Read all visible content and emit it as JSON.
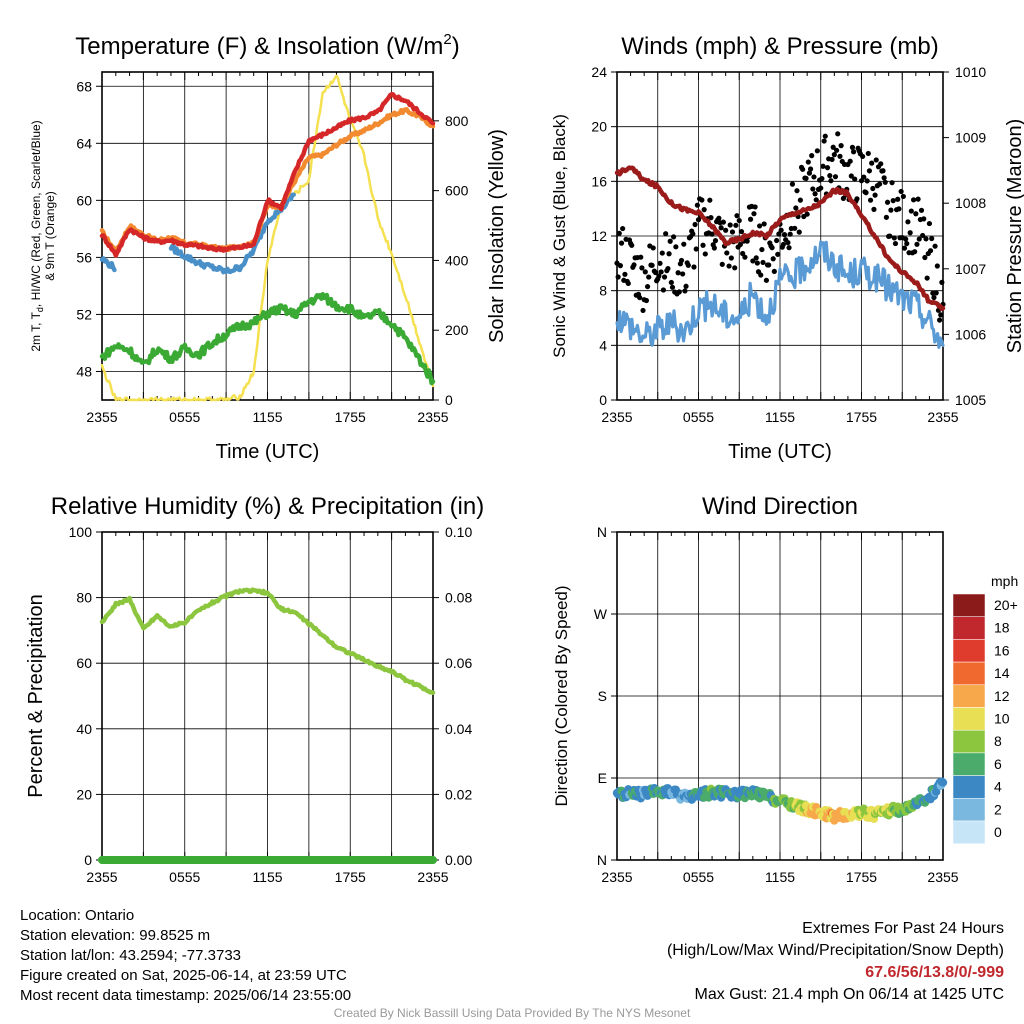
{
  "chart_data": [
    {
      "id": "temp",
      "type": "line",
      "title": "Temperature (F) & Insolation (W/m",
      "title_sup": "2",
      "title_close": ")",
      "xlabel": "Time (UTC)",
      "ylabel_line1": "2m T, T",
      "ylabel_sub": "d",
      "ylabel_line1_rest": ", HI/WC (Red, Green, Scarlet/Blue)",
      "ylabel_line2": "& 9m T (Orange)",
      "ylabel_right": "Solar Insolation (Yellow)",
      "x_ticks": [
        "2355",
        "0555",
        "1155",
        "1755",
        "2355"
      ],
      "ylim": [
        46,
        69
      ],
      "y_ticks": [
        "48",
        "52",
        "56",
        "60",
        "64",
        "68"
      ],
      "y_tick_values": [
        48,
        52,
        56,
        60,
        64,
        68
      ],
      "ylim_right": [
        0,
        940
      ],
      "y_ticks_right": [
        "0",
        "200",
        "400",
        "600",
        "800"
      ],
      "y_tick_values_right": [
        0,
        200,
        400,
        600,
        800
      ],
      "x_hours": [
        0,
        1,
        2,
        3,
        4,
        5,
        6,
        7,
        8,
        9,
        10,
        11,
        12,
        13,
        14,
        15,
        16,
        17,
        18,
        19,
        20,
        21,
        22,
        23,
        24
      ],
      "series": [
        {
          "color": "#f28b30",
          "values": [
            57.8,
            56.4,
            58.2,
            57.6,
            57.2,
            57.4,
            57.0,
            56.9,
            56.7,
            56.6,
            56.8,
            57.0,
            59.6,
            59.6,
            61.4,
            63.0,
            63.2,
            63.9,
            64.5,
            64.9,
            65.4,
            66.0,
            66.3,
            65.9,
            65.2
          ]
        },
        {
          "color": "#d62728",
          "values": [
            57.6,
            56.2,
            58.0,
            57.4,
            57.1,
            57.2,
            56.9,
            56.8,
            56.6,
            56.6,
            56.7,
            56.9,
            60.0,
            59.5,
            62.0,
            64.2,
            64.6,
            65.1,
            65.6,
            65.8,
            66.2,
            67.4,
            67.0,
            66.2,
            65.4
          ]
        },
        {
          "color": "#4a90c8",
          "values": [
            55.9,
            55.2,
            null,
            null,
            null,
            56.7,
            56.1,
            55.6,
            55.3,
            55.0,
            55.3,
            56.5,
            58.6,
            59.4,
            60.5,
            null,
            null,
            null,
            null,
            null,
            null,
            null,
            null,
            null,
            null
          ]
        },
        {
          "color": "#3aaa35",
          "values": [
            49.0,
            49.8,
            49.5,
            48.4,
            49.6,
            48.9,
            49.6,
            49.2,
            50.0,
            50.6,
            51.2,
            51.4,
            52.1,
            52.4,
            52.0,
            52.9,
            53.3,
            52.6,
            52.4,
            51.7,
            52.1,
            51.4,
            50.3,
            48.9,
            47.3
          ]
        },
        {
          "color": "#f5e050",
          "axis": "right",
          "values": [
            95,
            0,
            0,
            0,
            0,
            0,
            0,
            0,
            0,
            0,
            10,
            80,
            400,
            560,
            590,
            630,
            880,
            930,
            800,
            700,
            520,
            420,
            300,
            170,
            40
          ]
        }
      ]
    },
    {
      "id": "wind",
      "type": "line",
      "title": "Winds (mph) & Pressure (mb)",
      "xlabel": "Time (UTC)",
      "ylabel": "Sonic Wind & Gust (Blue, Black)",
      "ylabel_right": "Station Pressure (Maroon)",
      "x_ticks": [
        "2355",
        "0555",
        "1155",
        "1755",
        "2355"
      ],
      "ylim": [
        0,
        24
      ],
      "y_ticks": [
        "0",
        "4",
        "8",
        "12",
        "16",
        "20",
        "24"
      ],
      "y_tick_values": [
        0,
        4,
        8,
        12,
        16,
        20,
        24
      ],
      "ylim_right": [
        1005,
        1010
      ],
      "y_ticks_right": [
        "1005",
        "1006",
        "1007",
        "1008",
        "1009",
        "1010"
      ],
      "y_tick_values_right": [
        1005,
        1006,
        1007,
        1008,
        1009,
        1010
      ],
      "x_hours": [
        0,
        1,
        2,
        3,
        4,
        5,
        6,
        7,
        8,
        9,
        10,
        11,
        12,
        13,
        14,
        15,
        16,
        17,
        18,
        19,
        20,
        21,
        22,
        23,
        24
      ],
      "series": [
        {
          "color": "#5b9bd5",
          "values": [
            6.2,
            5.5,
            4.6,
            5.2,
            5.6,
            5.0,
            6.8,
            7.0,
            6.2,
            6.0,
            7.8,
            6.1,
            8.7,
            9.0,
            10.0,
            11.0,
            10.0,
            9.0,
            9.5,
            9.0,
            8.2,
            7.4,
            7.0,
            5.6,
            4.0
          ]
        },
        {
          "color": "#000000",
          "mode": "scatter",
          "values": [
            11.0,
            10.0,
            8.6,
            10.5,
            9.8,
            9.4,
            12.5,
            13.0,
            11.0,
            11.6,
            12.2,
            10.5,
            12.0,
            13.8,
            15.5,
            16.8,
            17.8,
            16.3,
            16.5,
            16.0,
            14.2,
            13.0,
            12.8,
            10.8,
            7.0
          ]
        },
        {
          "color": "#9b1b1b",
          "axis": "right",
          "values": [
            1008.45,
            1008.55,
            1008.35,
            1008.25,
            1008.0,
            1007.9,
            1007.85,
            1007.65,
            1007.4,
            1007.45,
            1007.55,
            1007.5,
            1007.75,
            1007.85,
            1007.9,
            1008.0,
            1008.2,
            1008.15,
            1007.8,
            1007.5,
            1007.15,
            1006.95,
            1006.8,
            1006.5,
            1006.4
          ]
        }
      ]
    },
    {
      "id": "rh",
      "type": "line",
      "title": "Relative Humidity (%) & Precipitation (in)",
      "ylabel": "Percent & Precipitation",
      "x_ticks": [
        "2355",
        "0555",
        "1155",
        "1755",
        "2355"
      ],
      "ylim": [
        0,
        100
      ],
      "y_ticks": [
        "0",
        "20",
        "40",
        "60",
        "80",
        "100"
      ],
      "y_tick_values": [
        0,
        20,
        40,
        60,
        80,
        100
      ],
      "ylim_right": [
        0,
        0.1
      ],
      "y_ticks_right": [
        "0.00",
        "0.02",
        "0.04",
        "0.06",
        "0.08",
        "0.10"
      ],
      "y_tick_values_right": [
        0,
        0.02,
        0.04,
        0.06,
        0.08,
        0.1
      ],
      "x_hours": [
        0,
        1,
        2,
        3,
        4,
        5,
        6,
        7,
        8,
        9,
        10,
        11,
        12,
        13,
        14,
        15,
        16,
        17,
        18,
        19,
        20,
        21,
        22,
        23,
        24
      ],
      "series": [
        {
          "color": "#8cc63f",
          "values": [
            72.5,
            78.0,
            79.5,
            70.5,
            74.5,
            71.0,
            72.5,
            76.0,
            78.5,
            80.5,
            82.0,
            82.0,
            81.5,
            76.5,
            75.5,
            72.0,
            68.5,
            65.0,
            63.0,
            61.0,
            59.0,
            57.5,
            55.0,
            53.0,
            51.0
          ]
        },
        {
          "color": "#3aaa35",
          "axis": "right",
          "values": [
            0,
            0,
            0,
            0,
            0,
            0,
            0,
            0,
            0,
            0,
            0,
            0,
            0,
            0,
            0,
            0,
            0,
            0,
            0,
            0,
            0,
            0,
            0,
            0,
            0
          ]
        }
      ]
    },
    {
      "id": "dir",
      "type": "scatter",
      "title": "Wind Direction",
      "ylabel": "Direction (Colored By Speed)",
      "x_ticks": [
        "2355",
        "0555",
        "1155",
        "1755",
        "2355"
      ],
      "ylim": [
        0,
        360
      ],
      "y_ticks": [
        "N",
        "E",
        "S",
        "W",
        "N"
      ],
      "y_tick_values": [
        0,
        90,
        180,
        270,
        360
      ],
      "x_hours": [
        0,
        1,
        2,
        3,
        4,
        5,
        6,
        7,
        8,
        9,
        10,
        11,
        12,
        13,
        14,
        15,
        16,
        17,
        18,
        19,
        20,
        21,
        22,
        23,
        24
      ],
      "series": [
        {
          "values": [
            72,
            73,
            72,
            75,
            74,
            70,
            72,
            74,
            73,
            72,
            73,
            70,
            64,
            60,
            55,
            52,
            48,
            50,
            52,
            50,
            54,
            56,
            60,
            70,
            85
          ],
          "speeds": [
            6,
            5,
            5,
            6,
            5,
            4,
            6,
            7,
            6,
            6,
            7,
            6,
            8,
            9,
            11,
            12,
            13,
            11,
            10,
            10,
            9,
            8,
            7,
            5,
            4
          ]
        }
      ],
      "legend": {
        "unit": "mph",
        "labels": [
          "20+",
          "18",
          "16",
          "14",
          "12",
          "10",
          "8",
          "6",
          "4",
          "2",
          "0"
        ],
        "colors": [
          "#8b1a1a",
          "#c0282d",
          "#e03c2e",
          "#f06a2f",
          "#f7a84a",
          "#e8df55",
          "#8cc63f",
          "#4aab6a",
          "#3b88c4",
          "#7ab8e0",
          "#c6e6f7"
        ]
      }
    }
  ],
  "footer": {
    "location": "Location: Ontario",
    "elevation": "Station elevation: 99.8525 m",
    "latlon": "Station lat/lon: 43.2594; -77.3733",
    "created": "Figure created on Sat, 2025-06-14, at 23:59 UTC",
    "recent": "Most recent data timestamp: 2025/06/14 23:55:00",
    "extremes_title": "Extremes For Past 24 Hours",
    "extremes_fields": "(High/Low/Max Wind/Precipitation/Snow Depth)",
    "extremes_values": "67.6/56/13.8/0/-999",
    "max_gust": "Max Gust: 21.4 mph On 06/14 at 1425 UTC",
    "credit": "Created By Nick Bassill Using Data Provided By The NYS Mesonet"
  }
}
